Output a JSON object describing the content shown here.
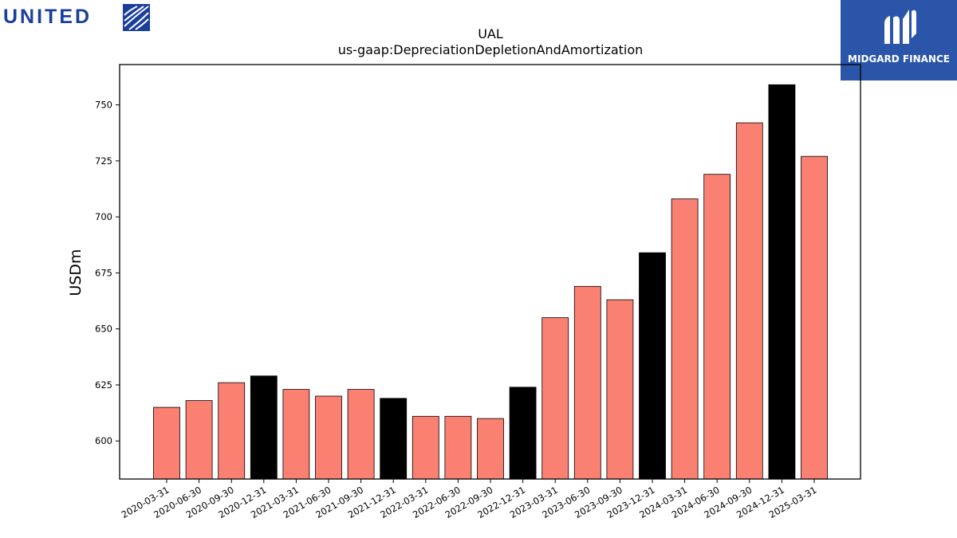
{
  "header": {
    "left_logo_text": "UNITED",
    "right_logo_text": "MIDGARD FINANCE"
  },
  "colors": {
    "bar_quarter": "#fa8072",
    "bar_year_end": "#000000",
    "brand_left": "#1a3e9e",
    "brand_right": "#2a55a8"
  },
  "chart_data": {
    "type": "bar",
    "title": "UAL",
    "subtitle": "us-gaap:DepreciationDepletionAndAmortization",
    "ylabel": "USDm",
    "xlabel": "",
    "ylim": [
      583,
      768
    ],
    "yticks": [
      600,
      625,
      650,
      675,
      700,
      725,
      750
    ],
    "grid": false,
    "categories": [
      "2020-03-31",
      "2020-06-30",
      "2020-09-30",
      "2020-12-31",
      "2021-03-31",
      "2021-06-30",
      "2021-09-30",
      "2021-12-31",
      "2022-03-31",
      "2022-06-30",
      "2022-09-30",
      "2022-12-31",
      "2023-03-31",
      "2023-06-30",
      "2023-09-30",
      "2023-12-31",
      "2024-03-31",
      "2024-06-30",
      "2024-09-30",
      "2024-12-31",
      "2025-03-31"
    ],
    "values": [
      615,
      618,
      626,
      629,
      623,
      620,
      623,
      619,
      611,
      611,
      610,
      624,
      655,
      669,
      663,
      684,
      708,
      719,
      742,
      759,
      727
    ],
    "year_end": [
      false,
      false,
      false,
      true,
      false,
      false,
      false,
      true,
      false,
      false,
      false,
      true,
      false,
      false,
      false,
      true,
      false,
      false,
      false,
      true,
      false
    ]
  }
}
